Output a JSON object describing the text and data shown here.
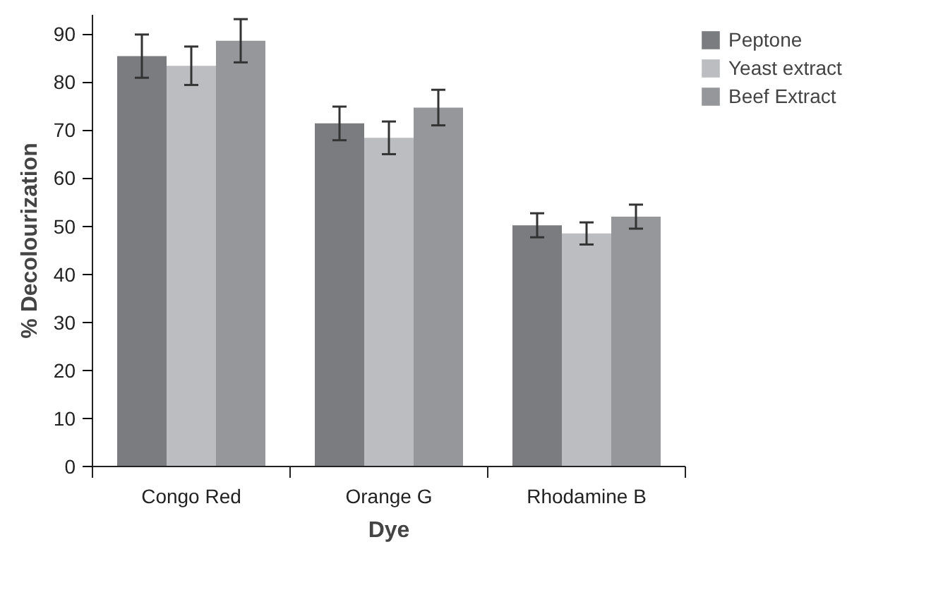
{
  "chart_data": {
    "type": "bar",
    "xlabel": "Dye",
    "ylabel": "% Decolourization",
    "categories": [
      "Congo Red",
      "Orange G",
      "Rhodamine B"
    ],
    "series": [
      {
        "name": "Peptone",
        "color": "#7b7c80",
        "values": [
          85.4,
          71.4,
          50.2
        ],
        "errors": [
          4.5,
          3.5,
          2.5
        ]
      },
      {
        "name": "Yeast extract",
        "color": "#bcbdc1",
        "values": [
          83.4,
          68.4,
          48.5
        ],
        "errors": [
          4.0,
          3.4,
          2.3
        ]
      },
      {
        "name": "Beef Extract",
        "color": "#96979b",
        "values": [
          88.6,
          74.7,
          52.0
        ],
        "errors": [
          4.5,
          3.7,
          2.5
        ]
      }
    ],
    "ylim": [
      0,
      94
    ],
    "yticks": [
      0,
      10,
      20,
      30,
      40,
      50,
      60,
      70,
      80,
      90
    ],
    "grid": false,
    "legend": "top right"
  }
}
